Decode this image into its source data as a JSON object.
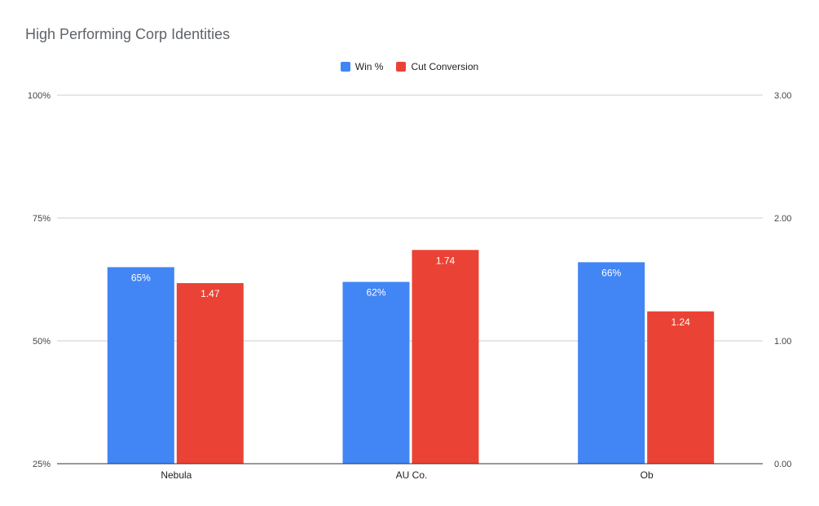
{
  "chart_data": {
    "type": "bar",
    "title": "High Performing Corp Identities",
    "categories": [
      "Nebula",
      "AU Co.",
      "Ob"
    ],
    "series": [
      {
        "name": "Win %",
        "axis": "left",
        "values": [
          65,
          62,
          66
        ],
        "labels": [
          "65%",
          "62%",
          "66%"
        ],
        "color": "#4285f4"
      },
      {
        "name": "Cut Conversion",
        "axis": "right",
        "values": [
          1.47,
          1.74,
          1.24
        ],
        "labels": [
          "1.47",
          "1.74",
          "1.24"
        ],
        "color": "#ea4335"
      }
    ],
    "y_left": {
      "min": 25,
      "max": 100,
      "ticks": [
        "25%",
        "50%",
        "75%",
        "100%"
      ],
      "tick_values": [
        25,
        50,
        75,
        100
      ]
    },
    "y_right": {
      "min": 0,
      "max": 3,
      "ticks": [
        "0.00",
        "1.00",
        "2.00",
        "3.00"
      ],
      "tick_values": [
        0,
        1,
        2,
        3
      ]
    },
    "legend_position": "top",
    "grid": true
  }
}
